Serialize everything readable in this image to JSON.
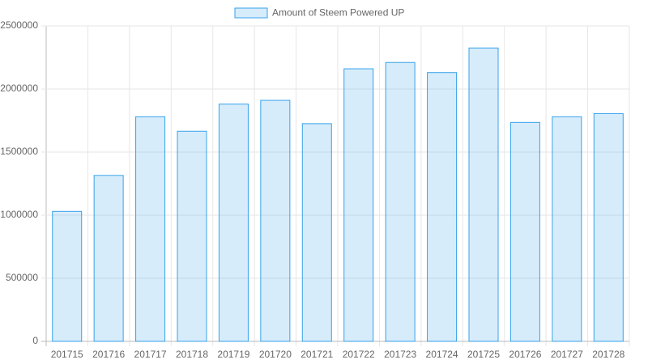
{
  "chart_data": {
    "type": "bar",
    "categories": [
      "201715",
      "201716",
      "201717",
      "201718",
      "201719",
      "201720",
      "201721",
      "201722",
      "201723",
      "201724",
      "201725",
      "201726",
      "201727",
      "201728"
    ],
    "series": [
      {
        "name": "Amount of Steem Powered UP",
        "color": "#36a2eb",
        "values": [
          1030000,
          1315000,
          1780000,
          1665000,
          1880000,
          1910000,
          1725000,
          2160000,
          2210000,
          2130000,
          2325000,
          1735000,
          1780000,
          1805000
        ]
      }
    ],
    "ylim": [
      0,
      2500000
    ],
    "yticks": [
      0,
      500000,
      1000000,
      1500000,
      2000000,
      2500000
    ],
    "grid": true,
    "legend": "top"
  }
}
